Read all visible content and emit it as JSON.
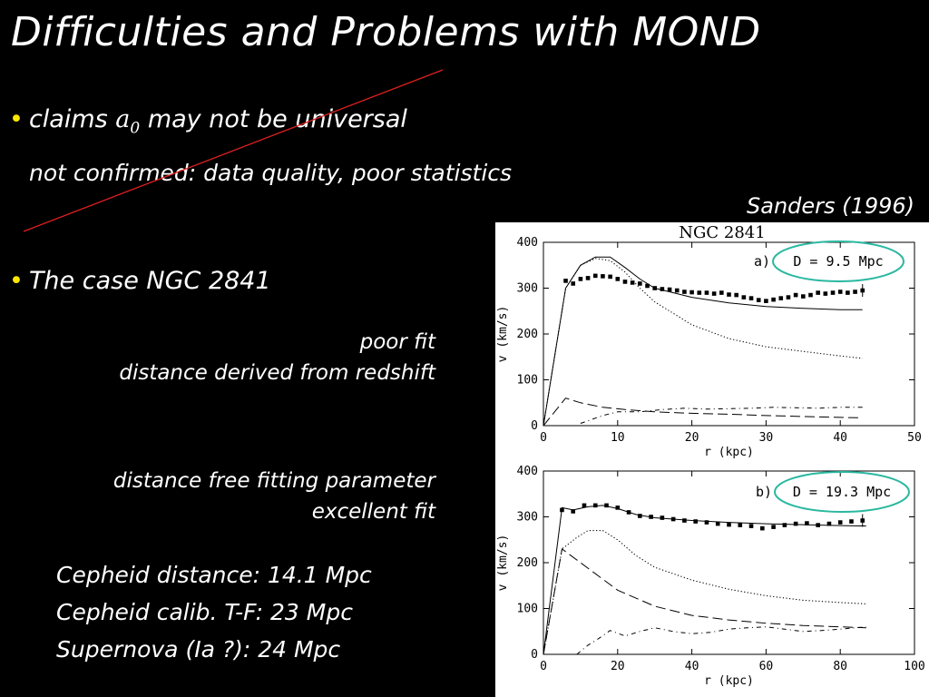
{
  "slide": {
    "title": "Difficulties and Problems with MOND",
    "bullet1": {
      "text_before": "claims",
      "symbol": "a",
      "subscript": "0",
      "text_after": "may not be universal"
    },
    "bullet1_note": "not confirmed: data quality, poor statistics",
    "citation": "Sanders (1996)",
    "bullet2": "The case NGC 2841",
    "fit_poor": [
      "poor fit",
      "distance derived from redshift"
    ],
    "fit_excellent": [
      "distance free fitting parameter",
      "excellent fit"
    ],
    "distances": [
      "Cepheid distance: 14.1 Mpc",
      "Cepheid calib. T-F: 23 Mpc",
      "Supernova (Ia ?): 24 Mpc"
    ],
    "colors": {
      "bullet_dot": "#ffe800",
      "strike_line": "#e02020",
      "highlight_ellipse": "#2ab8a0"
    }
  },
  "chart_data": [
    {
      "type": "line",
      "title": "NGC 2841",
      "panel_label": "a)",
      "annotation": "D = 9.5 Mpc",
      "xlabel": "r (kpc)",
      "ylabel": "v (km/s)",
      "xlim": [
        0,
        50
      ],
      "ylim": [
        0,
        400
      ],
      "xticks": [
        0,
        10,
        20,
        30,
        40,
        50
      ],
      "yticks": [
        0,
        100,
        200,
        300,
        400
      ],
      "series": [
        {
          "style": "solid",
          "x": [
            0,
            3,
            5,
            7,
            9,
            11,
            13,
            15,
            20,
            25,
            30,
            35,
            40,
            43
          ],
          "y": [
            0,
            300,
            350,
            368,
            368,
            345,
            320,
            300,
            280,
            268,
            260,
            256,
            253,
            253
          ]
        },
        {
          "style": "dotted",
          "x": [
            0,
            3,
            5,
            7,
            9,
            11,
            13,
            15,
            20,
            25,
            30,
            35,
            40,
            43
          ],
          "y": [
            0,
            300,
            350,
            365,
            360,
            335,
            300,
            270,
            220,
            190,
            172,
            162,
            152,
            147
          ]
        },
        {
          "style": "long-dash",
          "x": [
            0,
            3,
            5,
            8,
            11,
            15,
            20,
            25,
            30,
            35,
            40,
            43
          ],
          "y": [
            0,
            60,
            50,
            40,
            35,
            30,
            27,
            25,
            22,
            20,
            18,
            17
          ]
        },
        {
          "style": "short-dash",
          "x": [
            5,
            8,
            10,
            13,
            16,
            19,
            22,
            25,
            28,
            31,
            34,
            37,
            40,
            43
          ],
          "y": [
            5,
            22,
            30,
            30,
            35,
            38,
            36,
            37,
            38,
            40,
            39,
            38,
            40,
            40
          ]
        },
        {
          "style": "markers",
          "x": [
            3,
            4,
            5,
            6,
            7,
            8,
            9,
            10,
            11,
            12,
            13,
            14,
            15,
            16,
            17,
            18,
            19,
            20,
            21,
            22,
            23,
            24,
            25,
            26,
            27,
            28,
            29,
            30,
            31,
            32,
            33,
            34,
            35,
            36,
            37,
            38,
            39,
            40,
            41,
            42,
            43
          ],
          "y": [
            316,
            310,
            320,
            322,
            327,
            326,
            325,
            320,
            314,
            312,
            310,
            305,
            300,
            298,
            297,
            295,
            292,
            291,
            290,
            290,
            288,
            290,
            286,
            285,
            280,
            278,
            274,
            272,
            275,
            278,
            280,
            285,
            282,
            285,
            290,
            288,
            290,
            292,
            290,
            292,
            295
          ]
        }
      ]
    },
    {
      "type": "line",
      "panel_label": "b)",
      "annotation": "D = 19.3 Mpc",
      "xlabel": "r (kpc)",
      "ylabel": "v (km/s)",
      "xlim": [
        0,
        100
      ],
      "ylim": [
        0,
        400
      ],
      "xticks": [
        0,
        20,
        40,
        60,
        80,
        100
      ],
      "yticks": [
        0,
        100,
        200,
        300,
        400
      ],
      "series": [
        {
          "style": "solid",
          "x": [
            0,
            5,
            8,
            12,
            16,
            20,
            25,
            30,
            40,
            50,
            60,
            70,
            80,
            87
          ],
          "y": [
            0,
            320,
            315,
            322,
            325,
            318,
            305,
            298,
            292,
            288,
            285,
            283,
            281,
            280
          ]
        },
        {
          "style": "dotted",
          "x": [
            0,
            5,
            9,
            12,
            16,
            20,
            25,
            30,
            40,
            50,
            60,
            70,
            80,
            87
          ],
          "y": [
            0,
            230,
            255,
            270,
            270,
            250,
            215,
            190,
            162,
            142,
            128,
            118,
            113,
            110
          ]
        },
        {
          "style": "long-dash",
          "x": [
            0,
            5,
            10,
            15,
            20,
            30,
            40,
            50,
            60,
            70,
            80,
            87
          ],
          "y": [
            0,
            230,
            200,
            170,
            140,
            105,
            85,
            75,
            68,
            63,
            60,
            58
          ]
        },
        {
          "style": "short-dash",
          "x": [
            9,
            12,
            15,
            18,
            22,
            26,
            30,
            35,
            40,
            45,
            50,
            55,
            60,
            65,
            70,
            75,
            80,
            87
          ],
          "y": [
            0,
            20,
            35,
            52,
            40,
            50,
            58,
            50,
            45,
            48,
            55,
            58,
            60,
            55,
            50,
            52,
            55,
            60
          ]
        },
        {
          "style": "markers",
          "x": [
            5,
            8,
            11,
            14,
            17,
            20,
            23,
            26,
            29,
            32,
            35,
            38,
            41,
            44,
            47,
            50,
            53,
            56,
            59,
            62,
            65,
            68,
            71,
            74,
            77,
            80,
            83,
            86
          ],
          "y": [
            315,
            312,
            325,
            325,
            325,
            320,
            310,
            302,
            300,
            298,
            295,
            292,
            290,
            288,
            285,
            283,
            282,
            280,
            275,
            278,
            282,
            285,
            286,
            282,
            285,
            288,
            290,
            292
          ]
        }
      ]
    }
  ]
}
